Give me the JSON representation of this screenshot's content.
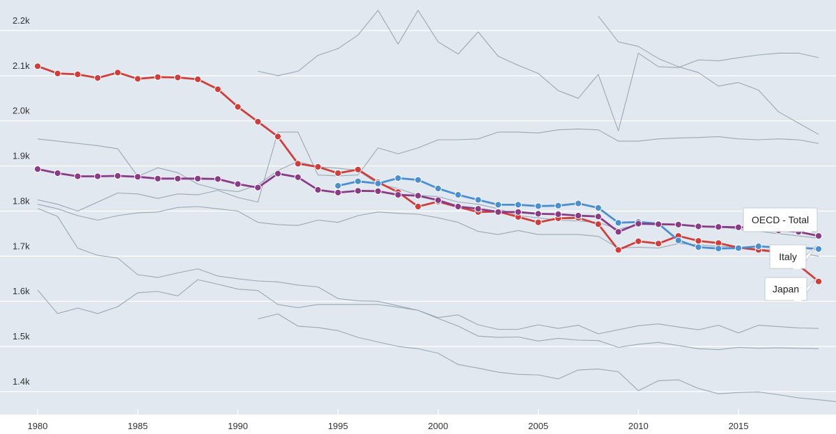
{
  "chart_data": {
    "type": "line",
    "title": "",
    "xlabel": "",
    "ylabel": "",
    "xlim": [
      1980,
      2019
    ],
    "ylim": [
      1350,
      2280
    ],
    "x_ticks": [
      1980,
      1985,
      1990,
      1995,
      2000,
      2005,
      2010,
      2015
    ],
    "x_tick_labels": [
      "1980",
      "1985",
      "1990",
      "1995",
      "2000",
      "2005",
      "2010",
      "2015"
    ],
    "y_ticks": [
      1400,
      1500,
      1600,
      1700,
      1800,
      1900,
      2000,
      2100,
      2200
    ],
    "y_tick_labels": [
      "1.4k",
      "1.5k",
      "1.6k",
      "1.7k",
      "1.8k",
      "1.9k",
      "2.0k",
      "2.1k",
      "2.2k"
    ],
    "grid": "horizontal",
    "colors": {
      "plot_background": "#e1e8ef",
      "context": "#9aa8b4",
      "japan": "#d13d3a",
      "italy": "#4a8fd0",
      "oecd": "#8a3b86"
    },
    "series": [
      {
        "name": "Japan",
        "label": "Japan",
        "color": "#d13d3a",
        "x_start": 1980,
        "values": [
          2121,
          2105,
          2103,
          2095,
          2107,
          2093,
          2097,
          2096,
          2092,
          2070,
          2031,
          1998,
          1965,
          1905,
          1898,
          1884,
          1892,
          1864,
          1842,
          1810,
          1821,
          1809,
          1798,
          1799,
          1787,
          1775,
          1784,
          1785,
          1771,
          1714,
          1733,
          1728,
          1745,
          1734,
          1729,
          1719,
          1714,
          1709,
          1680,
          1644
        ]
      },
      {
        "name": "Italy",
        "label": "Italy",
        "color": "#4a8fd0",
        "x_start": 1995,
        "values": [
          1856,
          1866,
          1861,
          1873,
          1869,
          1850,
          1836,
          1825,
          1814,
          1814,
          1811,
          1812,
          1817,
          1807,
          1774,
          1776,
          1772,
          1735,
          1720,
          1717,
          1718,
          1722,
          1719,
          1719,
          1716
        ]
      },
      {
        "name": "OECD - Total",
        "label": "OECD - Total",
        "color": "#8a3b86",
        "x_start": 1980,
        "values": [
          1893,
          1884,
          1877,
          1877,
          1878,
          1876,
          1872,
          1872,
          1872,
          1871,
          1860,
          1852,
          1883,
          1875,
          1847,
          1841,
          1845,
          1844,
          1836,
          1834,
          1824,
          1810,
          1805,
          1798,
          1798,
          1794,
          1793,
          1790,
          1788,
          1754,
          1772,
          1771,
          1770,
          1766,
          1765,
          1764,
          1764,
          1757,
          1754,
          1745
        ]
      }
    ],
    "context_series": [
      {
        "x_start": 1980,
        "values": [
          1960,
          1955,
          1950,
          1945,
          1938,
          1877,
          1896,
          1885,
          1860,
          1848,
          1843,
          1858,
          1890,
          1910,
          1898,
          1895,
          1890,
          1860,
          1850,
          1835,
          1832,
          1820,
          1815,
          1805,
          1790,
          1785,
          1780,
          1778,
          1775,
          1760,
          1770,
          1772,
          1770,
          1768,
          1765,
          1760,
          1755,
          1750,
          1745,
          1740
        ]
      },
      {
        "x_start": 1980,
        "values": [
          1825,
          1815,
          1800,
          1820,
          1840,
          1838,
          1828,
          1838,
          1836,
          1846,
          1830,
          1820,
          1975,
          1975,
          1880,
          1878,
          1880,
          1940,
          1927,
          1940,
          1958,
          1958,
          1960,
          1975,
          1975,
          1973,
          1980,
          1982,
          1980,
          1955,
          1955,
          1960,
          1962,
          1963,
          1965,
          1960,
          1958,
          1960,
          1958,
          1950
        ]
      },
      {
        "x_start": 1980,
        "values": [
          1815,
          1805,
          1790,
          1780,
          1790,
          1796,
          1798,
          1808,
          1810,
          1805,
          1800,
          1775,
          1770,
          1768,
          1780,
          1775,
          1790,
          1798,
          1795,
          1793,
          1785,
          1775,
          1755,
          1748,
          1757,
          1748,
          1748,
          1748,
          1744,
          1718,
          1720,
          1718,
          1728,
          1725,
          1722,
          1720,
          1716,
          1712,
          1708,
          1700
        ]
      },
      {
        "x_start": 1980,
        "values": [
          1806,
          1788,
          1718,
          1702,
          1696,
          1659,
          1653,
          1663,
          1672,
          1656,
          1650,
          1645,
          1643,
          1636,
          1632,
          1606,
          1601,
          1600,
          1590,
          1580,
          1562,
          1545,
          1523,
          1520,
          1521,
          1512,
          1518,
          1514,
          1513,
          1498,
          1505,
          1509,
          1502,
          1495,
          1493,
          1498,
          1496,
          1497,
          1496,
          1495
        ]
      },
      {
        "x_start": 1980,
        "values": [
          1625,
          1573,
          1585,
          1573,
          1588,
          1619,
          1622,
          1612,
          1648,
          1638,
          1627,
          1624,
          1593,
          1586,
          1593,
          1593,
          1593,
          1593,
          1587,
          1580,
          1564,
          1570,
          1548,
          1538,
          1538,
          1548,
          1540,
          1547,
          1528,
          1537,
          1546,
          1550,
          1543,
          1537,
          1547,
          1530,
          1547,
          1544,
          1541,
          1540
        ]
      },
      {
        "x_start": 1991,
        "values": [
          1561,
          1572,
          1545,
          1542,
          1535,
          1520,
          1510,
          1500,
          1495,
          1485,
          1460,
          1452,
          1443,
          1438,
          1437,
          1428,
          1448,
          1450,
          1444,
          1402,
          1424,
          1426,
          1407,
          1395,
          1398,
          1399,
          1393,
          1386,
          1382,
          1377
        ]
      },
      {
        "x_start": 1991,
        "values": [
          2110,
          2100,
          2110,
          2145,
          2160,
          2190,
          2245,
          2170,
          2245,
          2175,
          2148,
          2197,
          2143,
          2123,
          2105,
          2067,
          2050,
          2103,
          1978,
          2150,
          2120,
          2118,
          2135,
          2133,
          2140,
          2146,
          2150,
          2150,
          2140
        ]
      },
      {
        "x_start": 2008,
        "values": [
          2232,
          2175,
          2165,
          2138,
          2120,
          2107,
          2077,
          2085,
          2068,
          2020,
          1995,
          1970
        ]
      }
    ],
    "callouts": [
      {
        "series": "OECD - Total",
        "text": "OECD - Total"
      },
      {
        "series": "Italy",
        "text": "Italy"
      },
      {
        "series": "Japan",
        "text": "Japan"
      }
    ]
  }
}
